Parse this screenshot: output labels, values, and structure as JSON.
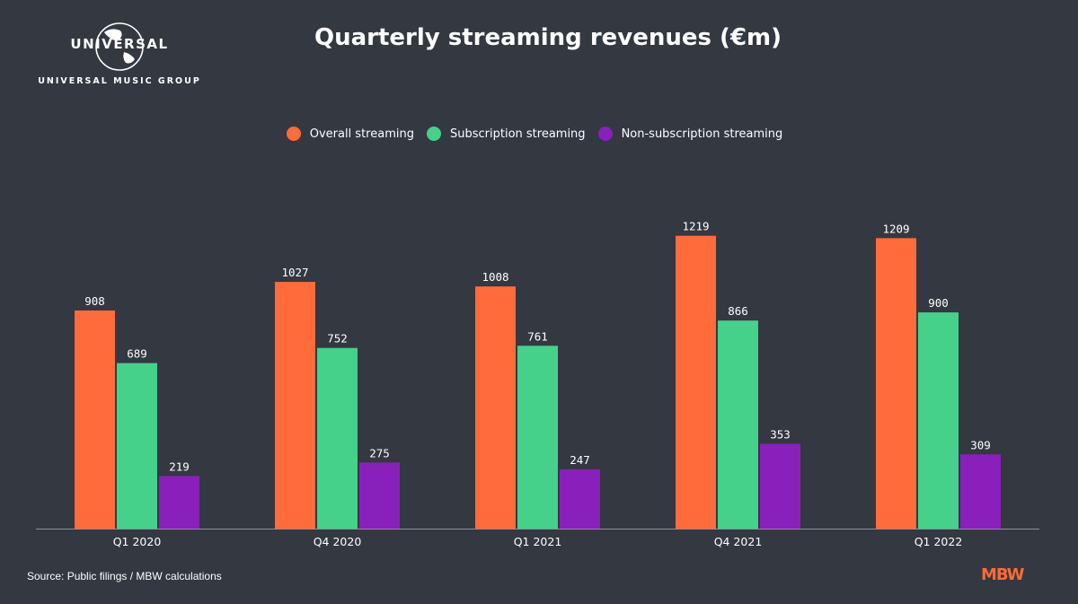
{
  "logo": {
    "brand": "UNIVERSAL",
    "subtitle": "UNIVERSAL MUSIC GROUP"
  },
  "source": "Source: Public filings / MBW calculations",
  "watermark": "MBW",
  "colors": {
    "background": "#333841",
    "overall": "#ff6b3b",
    "subscription": "#45d18a",
    "non_subscription": "#8a20bb",
    "axis": "#8e9299",
    "brand_orange": "#ff6b35"
  },
  "chart_data": {
    "type": "bar",
    "title": "Quarterly streaming revenues (€m)",
    "categories": [
      "Q1 2020",
      "Q4 2020",
      "Q1 2021",
      "Q4 2021",
      "Q1 2022"
    ],
    "series": [
      {
        "name": "Overall streaming",
        "color": "#ff6b3b",
        "values": [
          908,
          1027,
          1008,
          1219,
          1209
        ]
      },
      {
        "name": "Subscription streaming",
        "color": "#45d18a",
        "values": [
          689,
          752,
          761,
          866,
          900
        ]
      },
      {
        "name": "Non-subscription streaming",
        "color": "#8a20bb",
        "values": [
          219,
          275,
          247,
          353,
          309
        ]
      }
    ],
    "ylim": [
      0,
      1300
    ],
    "grid": false,
    "legend_position": "top-center",
    "data_labels": true,
    "xlabel": "",
    "ylabel": ""
  }
}
